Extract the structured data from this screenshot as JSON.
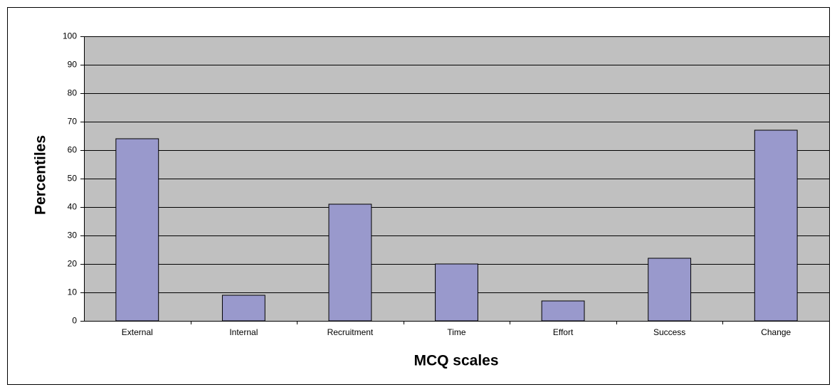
{
  "chart_data": {
    "type": "bar",
    "x_label": "MCQ scales",
    "y_label": "Percentiles",
    "categories": [
      "External",
      "Internal",
      "Recruitment",
      "Time",
      "Effort",
      "Success",
      "Change"
    ],
    "values": [
      64,
      9,
      41,
      20,
      7,
      22,
      67
    ],
    "color": "#9999cc",
    "ylim": [
      0,
      100
    ],
    "yticks": [
      0,
      10,
      20,
      30,
      40,
      50,
      60,
      70,
      80,
      90,
      100
    ],
    "grid": true
  }
}
